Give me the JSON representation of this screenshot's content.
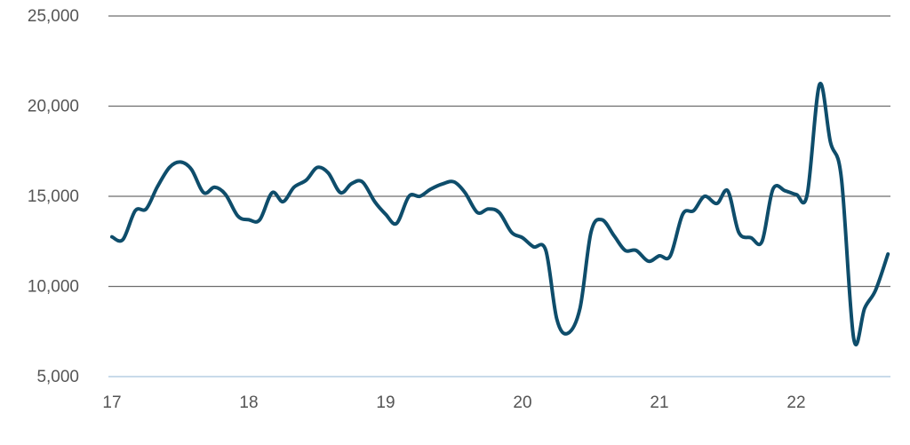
{
  "chart_data": {
    "type": "line",
    "title": "",
    "xlabel": "",
    "ylabel": "",
    "xlim": [
      17,
      22.75
    ],
    "ylim": [
      5000,
      25000
    ],
    "grid": true,
    "y_ticks": [
      {
        "value": 5000,
        "label": "5,000"
      },
      {
        "value": 10000,
        "label": "10,000"
      },
      {
        "value": 15000,
        "label": "15,000"
      },
      {
        "value": 20000,
        "label": "20,000"
      },
      {
        "value": 25000,
        "label": "25,000"
      }
    ],
    "x_ticks": [
      {
        "value": 17,
        "label": "17"
      },
      {
        "value": 18,
        "label": "18"
      },
      {
        "value": 19,
        "label": "19"
      },
      {
        "value": 20,
        "label": "20"
      },
      {
        "value": 21,
        "label": "21"
      },
      {
        "value": 22,
        "label": "22"
      }
    ],
    "series": [
      {
        "color": "#0e4d6b",
        "points": [
          [
            17.0,
            12750
          ],
          [
            17.08,
            12600
          ],
          [
            17.17,
            14200
          ],
          [
            17.25,
            14300
          ],
          [
            17.33,
            15500
          ],
          [
            17.42,
            16600
          ],
          [
            17.5,
            16900
          ],
          [
            17.58,
            16500
          ],
          [
            17.67,
            15200
          ],
          [
            17.75,
            15500
          ],
          [
            17.83,
            15100
          ],
          [
            17.92,
            13900
          ],
          [
            18.0,
            13700
          ],
          [
            18.08,
            13700
          ],
          [
            18.17,
            15200
          ],
          [
            18.25,
            14700
          ],
          [
            18.33,
            15500
          ],
          [
            18.42,
            15900
          ],
          [
            18.5,
            16600
          ],
          [
            18.58,
            16300
          ],
          [
            18.67,
            15200
          ],
          [
            18.75,
            15700
          ],
          [
            18.83,
            15800
          ],
          [
            18.92,
            14700
          ],
          [
            19.0,
            14000
          ],
          [
            19.08,
            13500
          ],
          [
            19.17,
            15000
          ],
          [
            19.25,
            15000
          ],
          [
            19.33,
            15400
          ],
          [
            19.42,
            15700
          ],
          [
            19.5,
            15800
          ],
          [
            19.58,
            15200
          ],
          [
            19.67,
            14100
          ],
          [
            19.75,
            14300
          ],
          [
            19.83,
            14100
          ],
          [
            19.92,
            13000
          ],
          [
            20.0,
            12700
          ],
          [
            20.08,
            12200
          ],
          [
            20.17,
            12000
          ],
          [
            20.25,
            8200
          ],
          [
            20.33,
            7400
          ],
          [
            20.42,
            8800
          ],
          [
            20.5,
            13000
          ],
          [
            20.58,
            13700
          ],
          [
            20.67,
            12800
          ],
          [
            20.75,
            12000
          ],
          [
            20.83,
            12000
          ],
          [
            20.92,
            11400
          ],
          [
            21.0,
            11700
          ],
          [
            21.08,
            11700
          ],
          [
            21.17,
            14000
          ],
          [
            21.25,
            14200
          ],
          [
            21.33,
            15000
          ],
          [
            21.42,
            14600
          ],
          [
            21.5,
            15300
          ],
          [
            21.58,
            13000
          ],
          [
            21.67,
            12700
          ],
          [
            21.75,
            12500
          ],
          [
            21.83,
            15400
          ],
          [
            21.92,
            15300
          ],
          [
            22.0,
            15100
          ],
          [
            22.08,
            15100
          ],
          [
            22.17,
            21200
          ],
          [
            22.25,
            18000
          ],
          [
            22.33,
            16000
          ],
          [
            22.42,
            7100
          ],
          [
            22.5,
            8800
          ],
          [
            22.58,
            9800
          ],
          [
            22.67,
            11800
          ]
        ]
      }
    ]
  }
}
